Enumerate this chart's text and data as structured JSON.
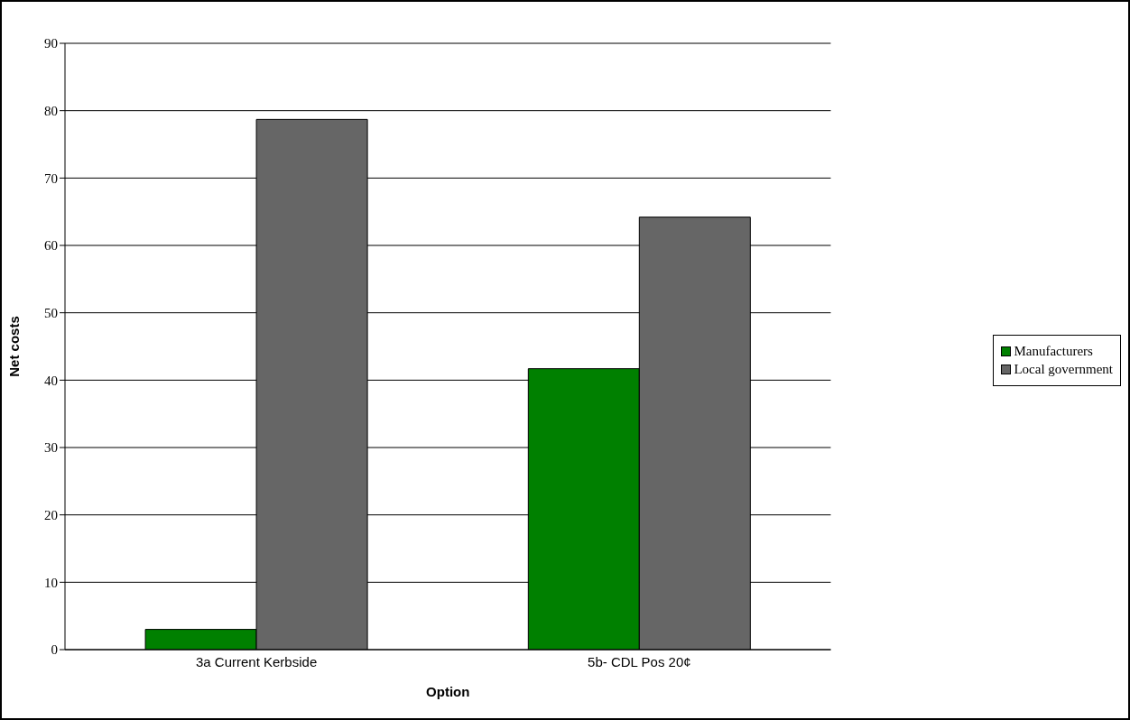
{
  "chart_data": {
    "type": "bar",
    "xlabel": "Option",
    "ylabel": "Net costs",
    "categories": [
      "3a Current Kerbside",
      "5b- CDL Pos 20¢"
    ],
    "series": [
      {
        "name": "Manufacturers",
        "color": "#008000",
        "values": [
          3,
          41.7
        ]
      },
      {
        "name": "Local government",
        "color": "#666666",
        "values": [
          78.7,
          64.2
        ]
      }
    ],
    "ylim": [
      0,
      90
    ],
    "yticks": [
      0,
      10,
      20,
      30,
      40,
      50,
      60,
      70,
      80,
      90
    ],
    "grid": "y",
    "legend": "right"
  }
}
